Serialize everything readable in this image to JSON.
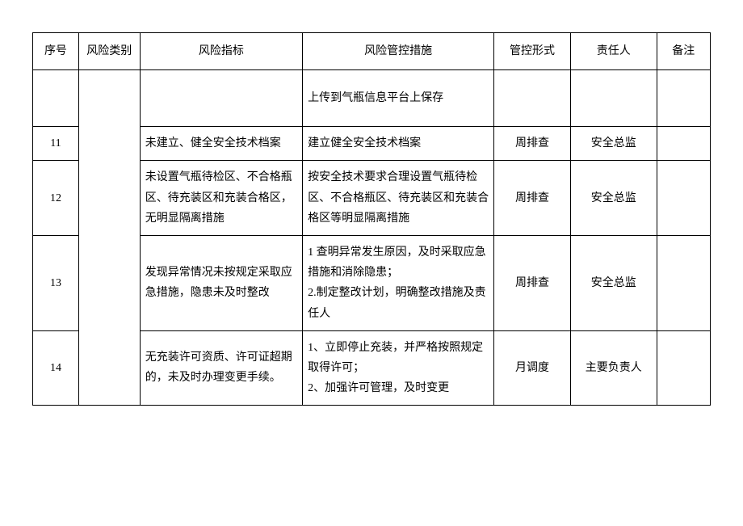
{
  "table": {
    "columns": [
      "序号",
      "风险类别",
      "风险指标",
      "风险管控措施",
      "管控形式",
      "责任人",
      "备注"
    ],
    "rows": [
      {
        "seq": "",
        "indicator": "",
        "measure": "上传到气瓶信息平台上保存",
        "form": "",
        "responsible": "",
        "note": ""
      },
      {
        "seq": "11",
        "indicator": "未建立、健全安全技术档案",
        "measure": "建立健全安全技术档案",
        "form": "周排查",
        "responsible": "安全总监",
        "note": ""
      },
      {
        "seq": "12",
        "indicator": "未设置气瓶待检区、不合格瓶区、待充装区和充装合格区，无明显隔离措施",
        "measure": "按安全技术要求合理设置气瓶待检区、不合格瓶区、待充装区和充装合格区等明显隔离措施",
        "form": "周排查",
        "responsible": "安全总监",
        "note": ""
      },
      {
        "seq": "13",
        "indicator": "发现异常情况未按规定采取应急措施，隐患未及时整改",
        "measure": "1 查明异常发生原因，及时采取应急措施和消除隐患；\n2.制定整改计划，明确整改措施及责任人",
        "form": "周排查",
        "responsible": "安全总监",
        "note": ""
      },
      {
        "seq": "14",
        "indicator": "无充装许可资质、许可证超期的，未及时办理变更手续。",
        "measure": "1、立即停止充装，并严格按照规定取得许可；\n2、加强许可管理，及时变更",
        "form": "月调度",
        "responsible": "主要负责人",
        "note": ""
      }
    ]
  }
}
